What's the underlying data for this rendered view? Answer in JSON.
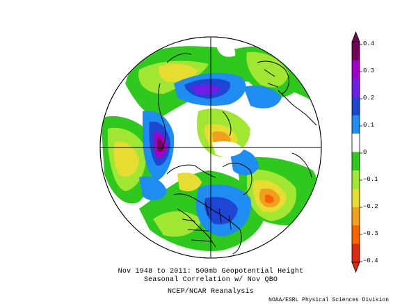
{
  "caption": {
    "line1": "Nov 1948 to 2011: 500mb Geopotential Height",
    "line2": "Seasonal Correlation w/ Nov QBO",
    "line3": "NCEP/NCAR Reanalysis"
  },
  "credit": "NOAA/ESRL Physical Sciences Division",
  "colorbar": {
    "labels": [
      "0.4",
      "0.3",
      "0.2",
      "0.1",
      "0",
      "−0.1",
      "−0.2",
      "−0.3",
      "−0.4"
    ],
    "colors": [
      "#73065a",
      "#a000c8",
      "#6e1ee6",
      "#1e46d2",
      "#1e8cf0",
      "#ffffff",
      "#2ec81e",
      "#a0e632",
      "#e6dc32",
      "#f0a01e",
      "#fa6400",
      "#dc2814"
    ]
  },
  "map": {
    "projection": "north polar stereographic",
    "background_color": "#ffffff",
    "coastline_color": "#000000"
  }
}
